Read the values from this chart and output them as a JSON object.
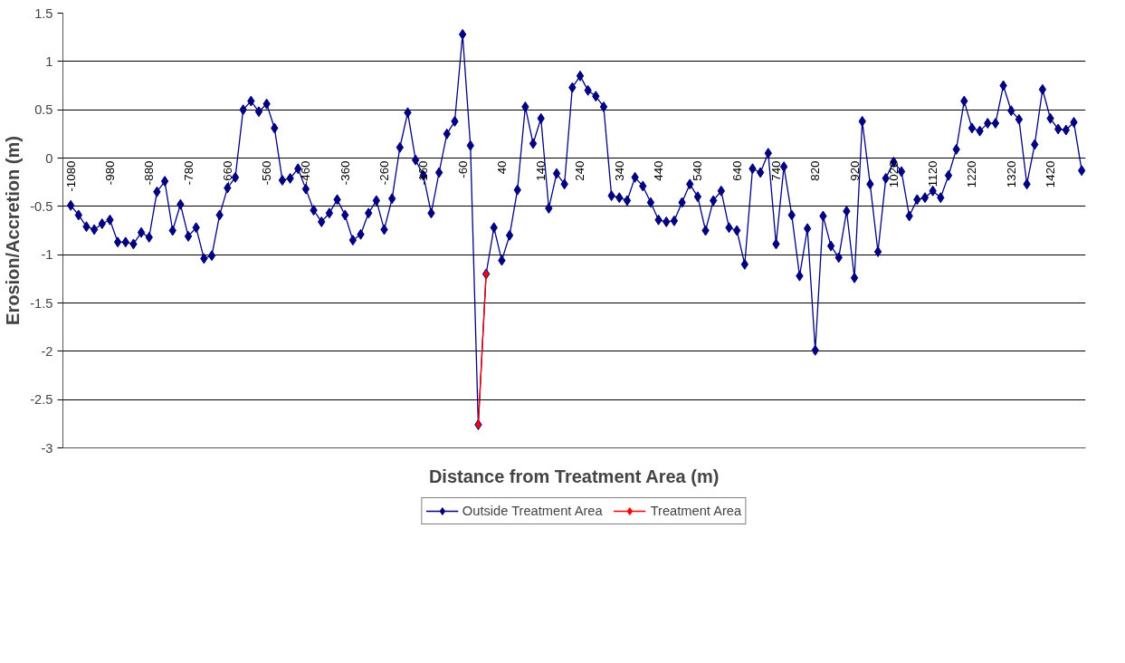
{
  "chart_data": {
    "type": "line",
    "xlabel": "Distance from Treatment Area (m)",
    "ylabel": "Erosion/Accretion (m)",
    "categories": [
      "-1080",
      null,
      null,
      null,
      null,
      "-980",
      null,
      null,
      null,
      null,
      "-880",
      null,
      null,
      null,
      null,
      "-780",
      null,
      null,
      null,
      null,
      "-660",
      null,
      null,
      null,
      null,
      "-560",
      null,
      null,
      null,
      null,
      "-460",
      null,
      null,
      null,
      null,
      "-360",
      null,
      null,
      null,
      null,
      "-260",
      null,
      null,
      null,
      null,
      "-160",
      null,
      null,
      null,
      null,
      "-60",
      null,
      null,
      null,
      null,
      "40",
      null,
      null,
      null,
      null,
      "140",
      null,
      null,
      null,
      null,
      "240",
      null,
      null,
      null,
      null,
      "340",
      null,
      null,
      null,
      null,
      "440",
      null,
      null,
      null,
      null,
      "540",
      null,
      null,
      null,
      null,
      "640",
      null,
      null,
      null,
      null,
      "740",
      null,
      null,
      null,
      null,
      "820",
      null,
      null,
      null,
      null,
      "920",
      null,
      null,
      null,
      null,
      "1020",
      null,
      null,
      null,
      null,
      "1120",
      null,
      null,
      null,
      null,
      "1220",
      null,
      null,
      null,
      null,
      "1320",
      null,
      null,
      null,
      null,
      "1420",
      null,
      null,
      null,
      null
    ],
    "series": [
      {
        "name": "Outside Treatment Area",
        "color": "#000080",
        "values": [
          -0.49,
          -0.59,
          -0.71,
          -0.74,
          -0.68,
          -0.64,
          -0.87,
          -0.87,
          -0.89,
          -0.77,
          -0.82,
          -0.35,
          -0.24,
          -0.75,
          -0.48,
          -0.81,
          -0.72,
          -1.04,
          -1.01,
          -0.59,
          -0.31,
          -0.2,
          0.5,
          0.59,
          0.48,
          0.56,
          0.31,
          -0.23,
          -0.21,
          -0.11,
          -0.32,
          -0.54,
          -0.66,
          -0.57,
          -0.43,
          -0.59,
          -0.85,
          -0.79,
          -0.57,
          -0.44,
          -0.74,
          -0.42,
          0.11,
          0.47,
          -0.02,
          -0.18,
          -0.57,
          -0.15,
          0.25,
          0.38,
          1.28,
          0.13,
          -2.76,
          -1.2,
          -0.72,
          -1.06,
          -0.8,
          -0.33,
          0.53,
          0.15,
          0.41,
          -0.52,
          -0.16,
          -0.27,
          0.73,
          0.85,
          0.7,
          0.64,
          0.53,
          -0.39,
          -0.41,
          -0.44,
          -0.2,
          -0.29,
          -0.46,
          -0.64,
          -0.66,
          -0.65,
          -0.46,
          -0.27,
          -0.4,
          -0.75,
          -0.44,
          -0.34,
          -0.72,
          -0.75,
          -1.1,
          -0.11,
          -0.15,
          0.05,
          -0.89,
          -0.09,
          -0.59,
          -1.22,
          -0.73,
          -1.99,
          -0.6,
          -0.91,
          -1.03,
          -0.55,
          -1.24,
          0.38,
          -0.27,
          -0.97,
          -0.21,
          -0.04,
          -0.14,
          -0.6,
          -0.43,
          -0.41,
          -0.34,
          -0.41,
          -0.18,
          0.09,
          0.59,
          0.31,
          0.28,
          0.36,
          0.36,
          0.75,
          0.49,
          0.4,
          -0.27,
          0.14,
          0.71,
          0.41,
          0.3,
          0.29,
          0.37,
          -0.13
        ]
      },
      {
        "name": "Treatment Area",
        "color": "#ff0000",
        "values": [
          null,
          null,
          null,
          null,
          null,
          null,
          null,
          null,
          null,
          null,
          null,
          null,
          null,
          null,
          null,
          null,
          null,
          null,
          null,
          null,
          null,
          null,
          null,
          null,
          null,
          null,
          null,
          null,
          null,
          null,
          null,
          null,
          null,
          null,
          null,
          null,
          null,
          null,
          null,
          null,
          null,
          null,
          null,
          null,
          null,
          null,
          null,
          null,
          null,
          null,
          null,
          null,
          -2.76,
          -1.2,
          null,
          null,
          null,
          null,
          null,
          null,
          null,
          null,
          null,
          null,
          null,
          null,
          null,
          null,
          null,
          null,
          null,
          null,
          null,
          null,
          null,
          null,
          null,
          null,
          null,
          null,
          null,
          null,
          null,
          null,
          null,
          null,
          null,
          null,
          null,
          null,
          null,
          null,
          null,
          null,
          null,
          null,
          null,
          null,
          null,
          null,
          null,
          null,
          null,
          null,
          null,
          null,
          null,
          null,
          null,
          null,
          null,
          null,
          null,
          null,
          null,
          null,
          null,
          null,
          null,
          null,
          null,
          null,
          null,
          null,
          null,
          null,
          null,
          null,
          null,
          null
        ]
      }
    ],
    "ylim": [
      -3,
      1.5
    ],
    "yticks": [
      -3,
      -2.5,
      -2,
      -1.5,
      -1,
      -0.5,
      0,
      0.5,
      1,
      1.5
    ],
    "grid": "y",
    "legend": "bottom",
    "marker": "diamond",
    "line_style": "solid"
  }
}
